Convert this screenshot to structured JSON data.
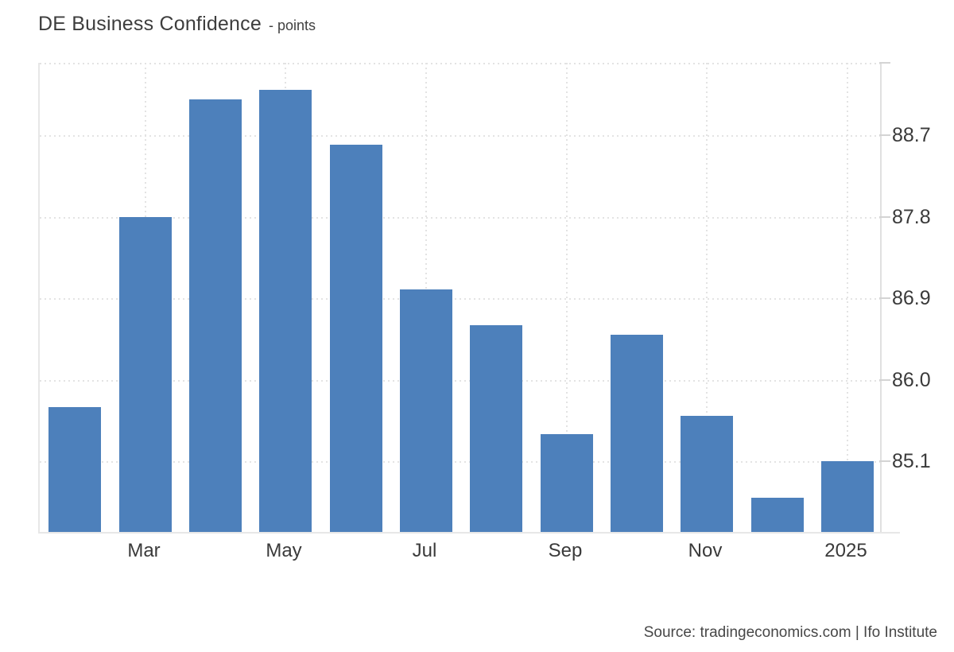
{
  "header": {
    "title": "DE Business Confidence",
    "subtitle": "- points"
  },
  "footer": {
    "source": "Source: tradingeconomics.com | Ifo Institute"
  },
  "chart_data": {
    "type": "bar",
    "title": "DE Business Confidence",
    "unit": "points",
    "categories": [
      "",
      "Mar",
      "",
      "May",
      "",
      "Jul",
      "",
      "Sep",
      "",
      "Nov",
      "",
      "2025"
    ],
    "values": [
      85.7,
      87.8,
      89.1,
      89.2,
      88.6,
      87.0,
      86.6,
      85.4,
      86.5,
      85.6,
      84.7,
      85.1
    ],
    "yticks": [
      88.7,
      87.8,
      86.9,
      86.0,
      85.1
    ],
    "ylim": [
      84.32,
      89.5
    ],
    "grid": true,
    "legend": "none",
    "ylabel_side": "right",
    "colors": {
      "bar": "#4d80bb",
      "grid": "#e3e3e3",
      "axis": "#e7e7e7",
      "tick": "#d4d4d4",
      "title_text": "#3d3d3d",
      "axis_text": "#3a3a3a",
      "source_text": "#474747"
    }
  }
}
